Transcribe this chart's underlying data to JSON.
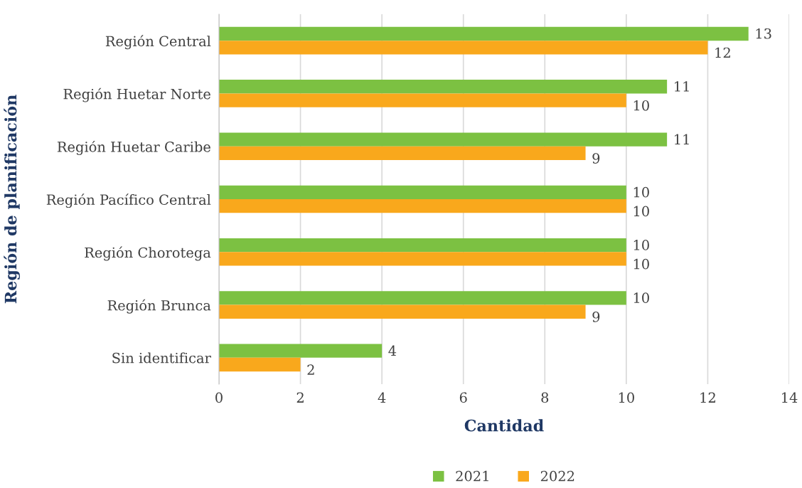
{
  "chart_data": {
    "type": "bar",
    "orientation": "horizontal",
    "xlabel": "Cantidad",
    "ylabel": "Región de planificación",
    "categories": [
      "Región Central",
      "Región Huetar Norte",
      "Región Huetar Caribe",
      "Región Pacífico Central",
      "Región Chorotega",
      "Región Brunca",
      "Sin identificar"
    ],
    "series": [
      {
        "name": "2021",
        "color": "#7cc142",
        "values": [
          13,
          11,
          11,
          10,
          10,
          10,
          4
        ]
      },
      {
        "name": "2022",
        "color": "#f9a81c",
        "values": [
          12,
          10,
          9,
          10,
          10,
          9,
          2
        ]
      }
    ],
    "xlim": [
      0,
      14
    ],
    "xticks": [
      0,
      2,
      4,
      6,
      8,
      10,
      12,
      14
    ],
    "grid": "x",
    "legend": "bottom",
    "data_labels": true
  }
}
